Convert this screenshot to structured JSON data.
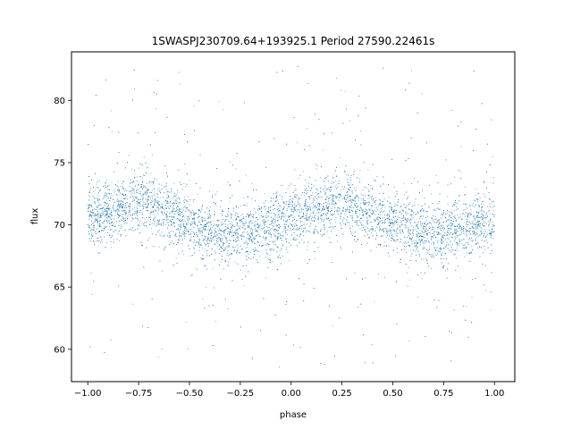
{
  "chart_data": {
    "type": "scatter",
    "title": "1SWASPJ230709.64+193925.1 Period 27590.22461s",
    "xlabel": "phase",
    "ylabel": "flux",
    "xlim": [
      -1.08,
      1.1
    ],
    "ylim": [
      57.4,
      83.9
    ],
    "xticks": [
      -1.0,
      -0.75,
      -0.5,
      -0.25,
      0.0,
      0.25,
      0.5,
      0.75,
      1.0
    ],
    "xtick_labels": [
      "−1.00",
      "−0.75",
      "−0.50",
      "−0.25",
      "0.00",
      "0.25",
      "0.50",
      "0.75",
      "1.00"
    ],
    "yticks": [
      60,
      65,
      70,
      75,
      80
    ],
    "ytick_labels": [
      "60",
      "65",
      "70",
      "75",
      "80"
    ],
    "grid": false,
    "marker_color": "#1f77b4",
    "series": [
      {
        "phase_range": [
          -1.0,
          1.0
        ],
        "points_approx": 9000,
        "trend_profile": {
          "phase": [
            -1.0,
            -0.9,
            -0.8,
            -0.7,
            -0.6,
            -0.5,
            -0.4,
            -0.3,
            -0.2,
            -0.1,
            0.0,
            0.1,
            0.2,
            0.3,
            0.4,
            0.5,
            0.6,
            0.7,
            0.8,
            0.9,
            1.0
          ],
          "flux": [
            70.5,
            71.0,
            71.8,
            71.9,
            71.0,
            70.0,
            69.4,
            69.2,
            69.5,
            69.9,
            70.5,
            71.0,
            71.8,
            71.9,
            71.0,
            70.0,
            69.4,
            69.2,
            69.5,
            69.9,
            70.5
          ]
        },
        "scatter_sigma_flux": 1.2,
        "outlier_flux_range": [
          58.5,
          83.0
        ]
      }
    ]
  }
}
